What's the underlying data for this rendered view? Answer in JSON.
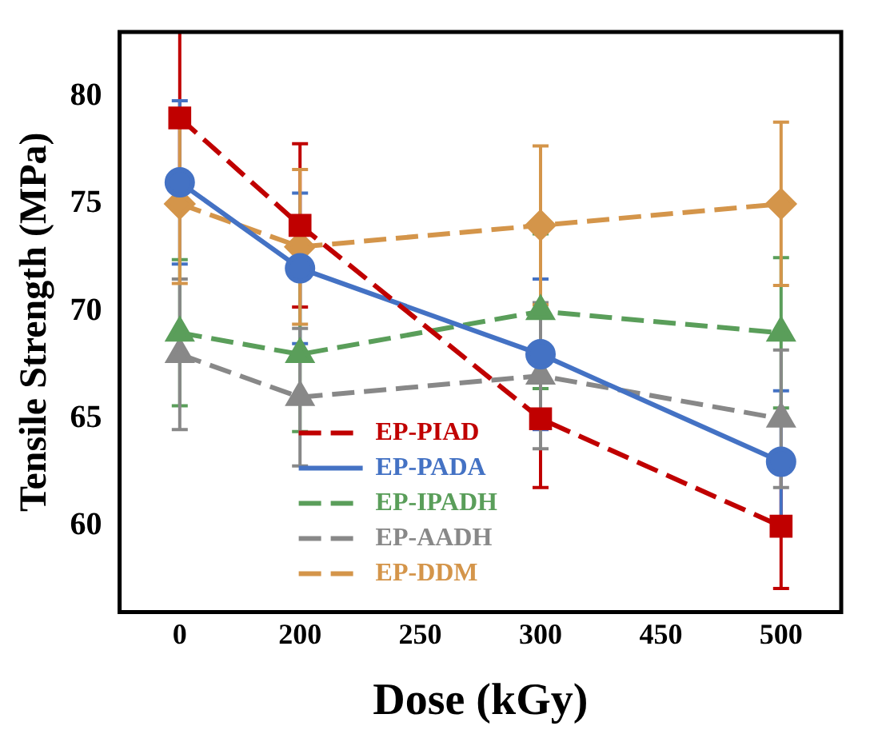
{
  "chart_data": {
    "type": "line",
    "xlabel": "Dose (kGy)",
    "ylabel": "Tensile Strength (MPa)",
    "categories": [
      "0",
      "200",
      "250",
      "300",
      "450",
      "500"
    ],
    "ylim": [
      56,
      83
    ],
    "yticks": [
      60,
      65,
      70,
      75,
      80
    ],
    "grid": false,
    "legend": "bottom",
    "series": [
      {
        "name": "EP-PIAD",
        "color": "#c00000",
        "marker": "square",
        "line_style": "dashed",
        "values": [
          79,
          74,
          null,
          65,
          null,
          60
        ],
        "errors": [
          4,
          3.8,
          null,
          3.2,
          null,
          2.9
        ]
      },
      {
        "name": "EP-PADA",
        "color": "#4472c4",
        "marker": "circle",
        "line_style": "solid",
        "values": [
          76,
          72,
          null,
          68,
          null,
          63
        ],
        "errors": [
          3.8,
          3.5,
          null,
          3.5,
          null,
          3.3
        ]
      },
      {
        "name": "EP-IPADH",
        "color": "#5a9e5a",
        "marker": "triangle",
        "line_style": "dashed",
        "values": [
          69,
          68,
          null,
          70,
          null,
          69
        ],
        "errors": [
          3.4,
          3.6,
          null,
          3.6,
          null,
          3.5
        ]
      },
      {
        "name": "EP-AADH",
        "color": "#888888",
        "marker": "triangle",
        "line_style": "dashed",
        "values": [
          68,
          66,
          null,
          67,
          null,
          65
        ],
        "errors": [
          3.5,
          3.2,
          null,
          3.4,
          null,
          3.2
        ]
      },
      {
        "name": "EP-DDM",
        "color": "#d4954a",
        "marker": "diamond",
        "line_style": "dashed",
        "values": [
          75,
          73,
          null,
          74,
          null,
          75
        ],
        "errors": [
          3.7,
          3.6,
          null,
          3.7,
          null,
          3.8
        ]
      }
    ]
  }
}
